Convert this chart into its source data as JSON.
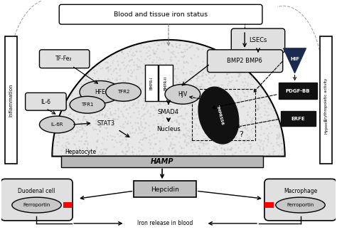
{
  "bg_color": "#ffffff",
  "top_box_text": "Blood and tissue iron status",
  "inflammation_label": "Inflammation",
  "erythro_line1": "Erythropoietic activity",
  "erythro_line2": "Hypoxia",
  "hepatocyte_label": "Hepatocyte",
  "hamp_label": "HAMP",
  "nucleus_label": "Nucleus",
  "smad4_label": "SMAD4",
  "stat3_label": "STAT3",
  "hif_label": "HIF",
  "pdgfbb_label": "PDGF-BB",
  "erfe_label": "ERFE",
  "lsecs_label": "LSECs",
  "bmp_label": "BMP2 BMP6",
  "tf_label": "TF-Fe₂",
  "il6_label": "IL-6",
  "il6r_label": "IL-6R",
  "hfe_label": "HFE",
  "tfr1_label": "TFR1",
  "tfr2_label": "TFR2",
  "hjv_label": "HJV",
  "bmpr1_label": "BMPR-I",
  "bmpr2_label": "BMPR-II",
  "tmprss6_label": "TMPRSS6",
  "hepcidin_label": "Hepcidin",
  "duodenal_label": "Duodenal cell",
  "macrophage_label": "Macrophage",
  "ferroportin_label": "Ferroportin",
  "iron_label": "Iron release in blood",
  "question_mark": "?"
}
